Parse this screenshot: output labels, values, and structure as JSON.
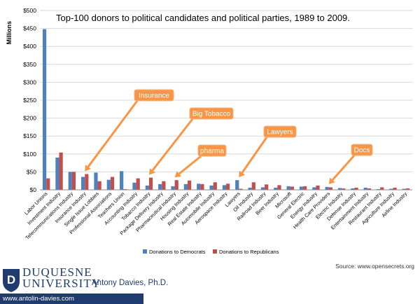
{
  "chart_data": {
    "type": "bar",
    "title": "Top-100 donors to political candidates and political parties, 1989 to 2009.",
    "ylabel": "Millions",
    "ylim": [
      0,
      500
    ],
    "yticks": [
      "$0",
      "$50",
      "$100",
      "$150",
      "$200",
      "$250",
      "$300",
      "$350",
      "$400",
      "$450",
      "$500"
    ],
    "categories": [
      "Labor Unions",
      "Investment Industry",
      "Telecommunications Industry",
      "Insurance Industry",
      "Single Issue Lobbies",
      "Professional Associations",
      "Teachers Union",
      "Accounting Industry",
      "Tobacco Industry",
      "Package Delivery Industry",
      "Pharmaceutical Industry",
      "Housing Industry",
      "Real Estate Industry",
      "Automobile Industry",
      "Aerospace Industry",
      "Lawyers",
      "Oil Industry",
      "Railroad Industry",
      "Beer Industry",
      "Microsoft",
      "General Electric",
      "Energy Industry",
      "Health Care Providers",
      "Electric Industry",
      "Defense Industry",
      "Entertainment Industry",
      "Restaurant Industry",
      "Agriculture Industry",
      "Airline Industry"
    ],
    "series": [
      {
        "name": "Donations to Democrats",
        "color": "#4f81bd",
        "values": [
          448,
          90,
          50,
          36,
          48,
          28,
          52,
          20,
          12,
          16,
          10,
          16,
          17,
          12,
          13,
          27,
          6,
          7,
          6,
          10,
          9,
          7,
          8,
          5,
          4,
          6,
          2,
          3,
          3
        ]
      },
      {
        "name": "Donations to Republicans",
        "color": "#c0504d",
        "values": [
          32,
          104,
          50,
          44,
          24,
          36,
          2,
          32,
          34,
          24,
          27,
          26,
          16,
          21,
          17,
          3,
          21,
          15,
          13,
          9,
          10,
          12,
          7,
          4,
          6,
          4,
          7,
          6,
          4
        ]
      }
    ],
    "annotations": [
      {
        "label": "Insurance",
        "target": "Insurance Industry"
      },
      {
        "label": "Big Tobacco",
        "target": "Tobacco Industry"
      },
      {
        "label": "pharma",
        "target": "Pharmaceutical Industry"
      },
      {
        "label": "Lawyers",
        "target": "Lawyers"
      },
      {
        "label": "Docs",
        "target": "Health Care Providers"
      }
    ],
    "annotation_style": {
      "fill": "#f79646",
      "text": "#ffffff",
      "border": "#f8b27d"
    },
    "gridlines": true,
    "legend_position": "bottom"
  },
  "footer": {
    "university_line1": "DUQUESNE",
    "university_line2": "UNIVERSITY",
    "author": "Antony Davies, Ph.D.",
    "website": "www.antolin-davies.com",
    "source": "Source: www.opensecrets.org"
  }
}
